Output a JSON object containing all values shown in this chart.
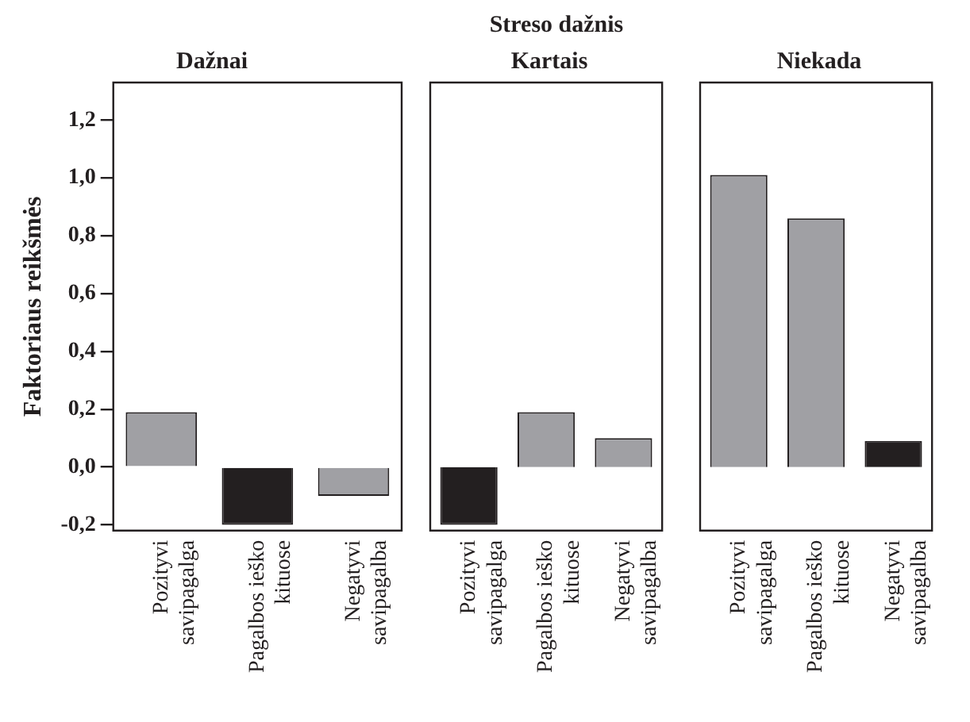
{
  "chart_data": [
    {
      "type": "bar",
      "title": "Dažnai",
      "ylabel": "Faktoriaus reikšmės",
      "annotations": [
        "Streso dažnis"
      ],
      "categories": [
        "Pozityvi savipagalga",
        "Pagalbos ieško kituose",
        "Negatyvi savipagalba"
      ],
      "values": [
        0.19,
        -0.2,
        -0.1
      ],
      "colors": [
        "#a0a0a4",
        "#231f20",
        "#a0a0a4"
      ],
      "ylim": [
        -0.22,
        1.33
      ],
      "yticks": [
        {
          "value": -0.2,
          "label": "-0,2"
        },
        {
          "value": 0,
          "label": "0,0"
        },
        {
          "value": 0.2,
          "label": "0,2"
        },
        {
          "value": 0.4,
          "label": "0,4"
        },
        {
          "value": 0.6,
          "label": "0,6"
        },
        {
          "value": 0.8,
          "label": "0,8"
        },
        {
          "value": 1.0,
          "label": "1,0"
        },
        {
          "value": 1.2,
          "label": "1,2"
        }
      ],
      "grid": false,
      "legend": false
    },
    {
      "type": "bar",
      "title": "Kartais",
      "categories": [
        "Pozityvi savipagalga",
        "Pagalbos ieško kituose",
        "Negatyvi savipagalba"
      ],
      "values": [
        -0.2,
        0.19,
        0.1
      ],
      "colors": [
        "#231f20",
        "#a0a0a4",
        "#a0a0a4"
      ],
      "ylim": [
        -0.22,
        1.33
      ],
      "tick_labels": "x",
      "grid": false,
      "legend": false
    },
    {
      "type": "bar",
      "title": "Niekada",
      "categories": [
        "Pozityvi savipagalga",
        "Pagalbos ieško kituose",
        "Negatyvi savipagalba"
      ],
      "values": [
        1.01,
        0.86,
        0.09
      ],
      "colors": [
        "#a0a0a4",
        "#a0a0a4",
        "#231f20"
      ],
      "ylim": [
        -0.22,
        1.33
      ],
      "tick_labels": "x",
      "grid": false,
      "legend": false
    }
  ]
}
